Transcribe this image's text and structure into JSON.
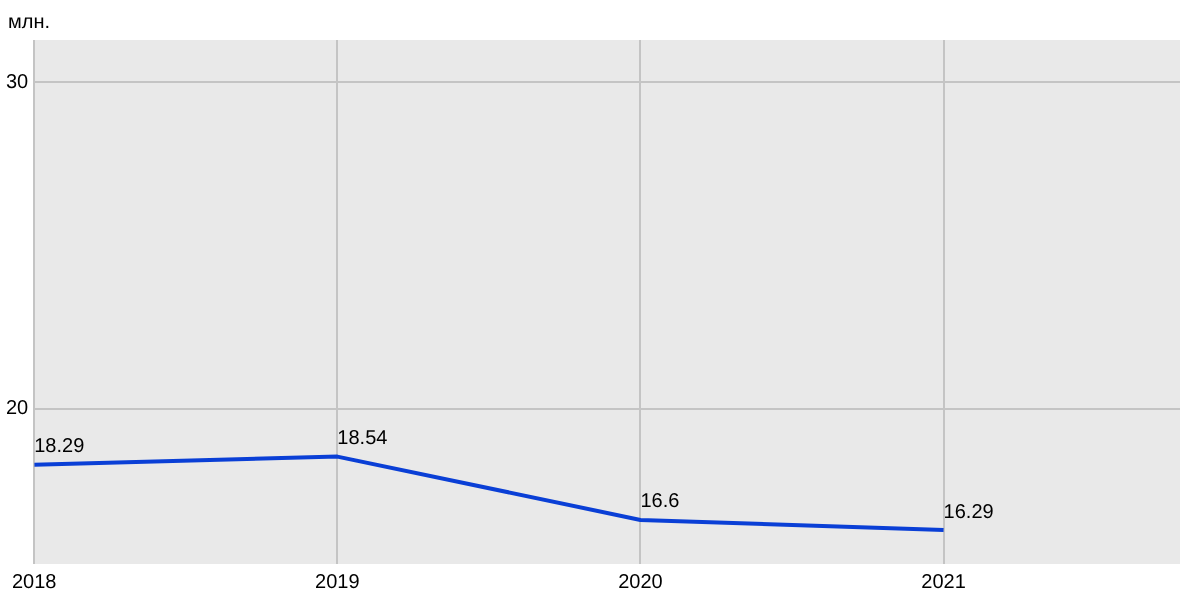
{
  "chart_data": {
    "type": "line",
    "ylabel": "млн.",
    "x": [
      2018,
      2019,
      2020,
      2021
    ],
    "series": [
      {
        "color": "#0a3fd6",
        "values": [
          18.29,
          18.54,
          16.6,
          16.29
        ]
      }
    ],
    "xlim": [
      2018,
      2021.78
    ],
    "xticks": [
      2018,
      2019,
      2020,
      2021
    ],
    "ylim": [
      15.25,
      31.3
    ],
    "yticks": [
      20,
      30
    ],
    "grid": true,
    "legend": false,
    "marker": "none",
    "line_style": "solid",
    "data_labels": true
  }
}
